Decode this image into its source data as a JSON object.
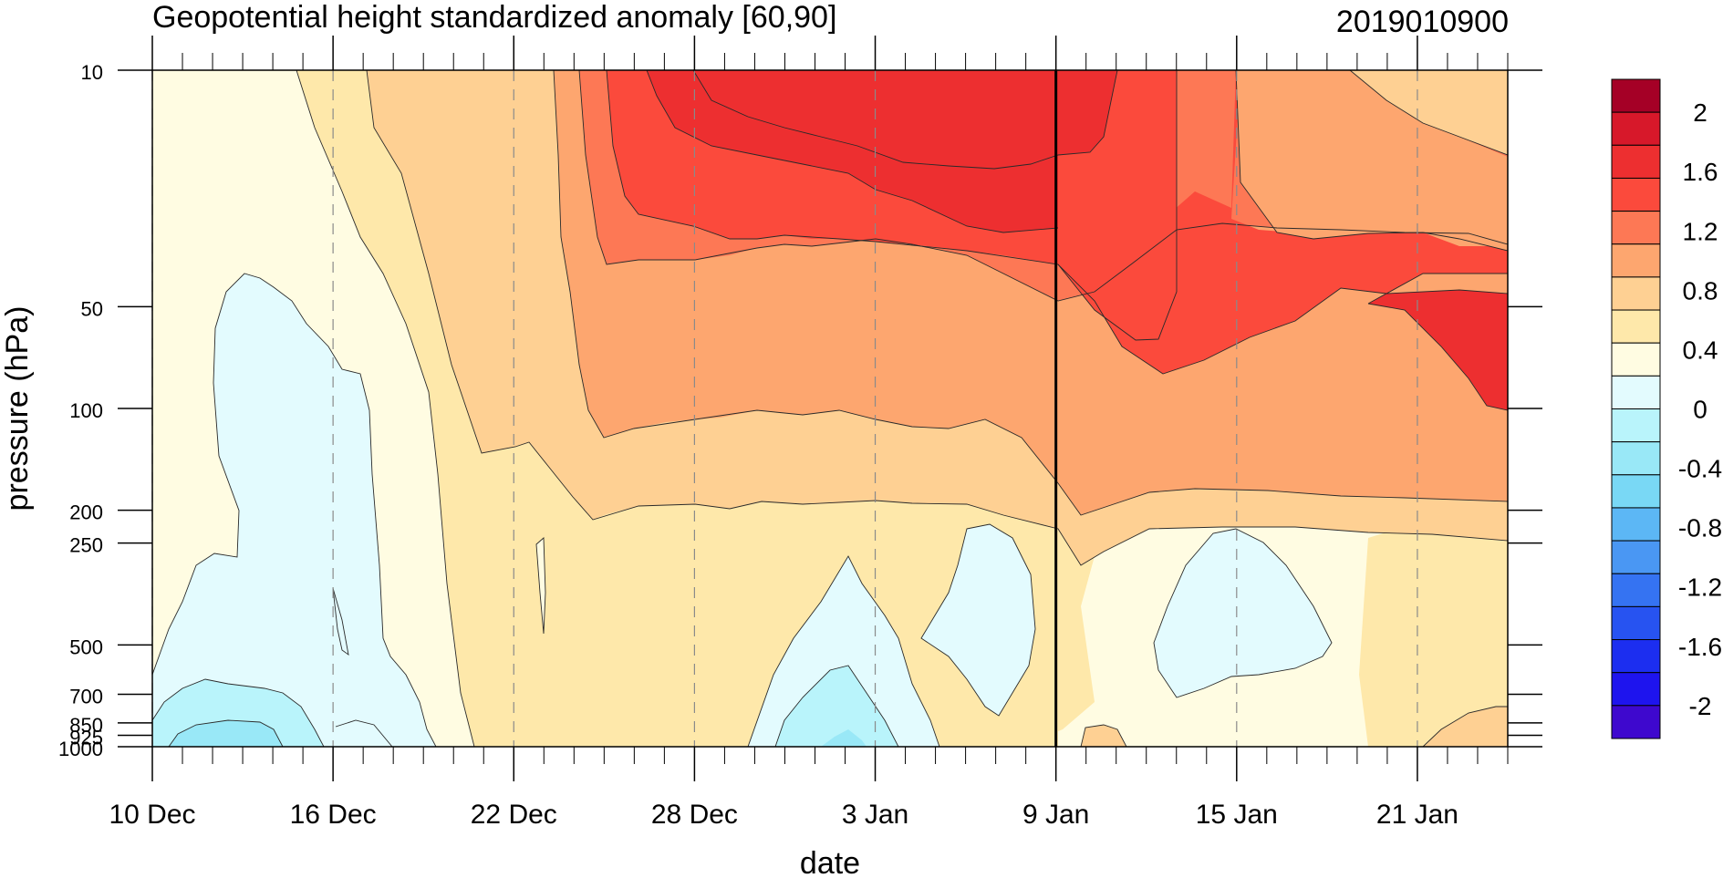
{
  "chart_data": {
    "type": "heatmap",
    "title": "Geopotential height standardized anomaly [60,90]",
    "subtitle": "2019010900",
    "xlabel": "date",
    "ylabel": "pressure (hPa)",
    "x_ticks": [
      "10 Dec",
      "16 Dec",
      "22 Dec",
      "28 Dec",
      "3 Jan",
      "9 Jan",
      "15 Jan",
      "21 Jan"
    ],
    "x_tick_days": [
      0,
      6,
      12,
      18,
      24,
      30,
      36,
      42
    ],
    "x_range_days": [
      0,
      45
    ],
    "marker_day": 30,
    "y_scale": "log",
    "y_ticks": [
      10,
      50,
      100,
      200,
      250,
      500,
      700,
      850,
      925,
      1000
    ],
    "y_tick_labels": [
      "10",
      "50",
      "100",
      "200",
      "250",
      "500",
      "700",
      "850",
      "925",
      "1000"
    ],
    "ylim": [
      1000,
      10
    ],
    "levels": [
      -2,
      -1.8,
      -1.6,
      -1.4,
      -1.2,
      -1,
      -0.8,
      -0.6,
      -0.4,
      -0.2,
      0,
      0.2,
      0.4,
      0.6,
      0.8,
      1,
      1.2,
      1.4,
      1.6,
      1.8,
      2
    ],
    "colorbar_labels": [
      "2",
      "1.6",
      "1.2",
      "0.8",
      "0.4",
      "0",
      "-0.4",
      "-0.8",
      "-1.2",
      "-1.6",
      "-2"
    ],
    "colorbar_values": [
      2,
      1.6,
      1.2,
      0.8,
      0.4,
      0,
      -0.4,
      -0.8,
      -1.2,
      -1.6,
      -2
    ],
    "colorbar_colors": [
      "#a50026",
      "#d7182a",
      "#ed2f30",
      "#fb4a3c",
      "#fd7855",
      "#fda66f",
      "#fed093",
      "#fee8aa",
      "#fffce2",
      "#e3fbfe",
      "#b9f4fb",
      "#99e8f7",
      "#79d8f5",
      "#5cb7f5",
      "#4a97f3",
      "#3573f2",
      "#2753f1",
      "#1c2ef0",
      "#1e14ee",
      "#3e08ce"
    ],
    "region_colors": {
      "neg2": "#79d8f5",
      "neg1": "#b9f4fb",
      "neg0": "#e3fbfe",
      "p0": "#fffce2",
      "p1": "#fee8aa",
      "p2": "#fed093",
      "p3": "#fda66f",
      "p4": "#fd7855",
      "p5": "#fb4a3c",
      "p6": "#ed2f30"
    }
  }
}
